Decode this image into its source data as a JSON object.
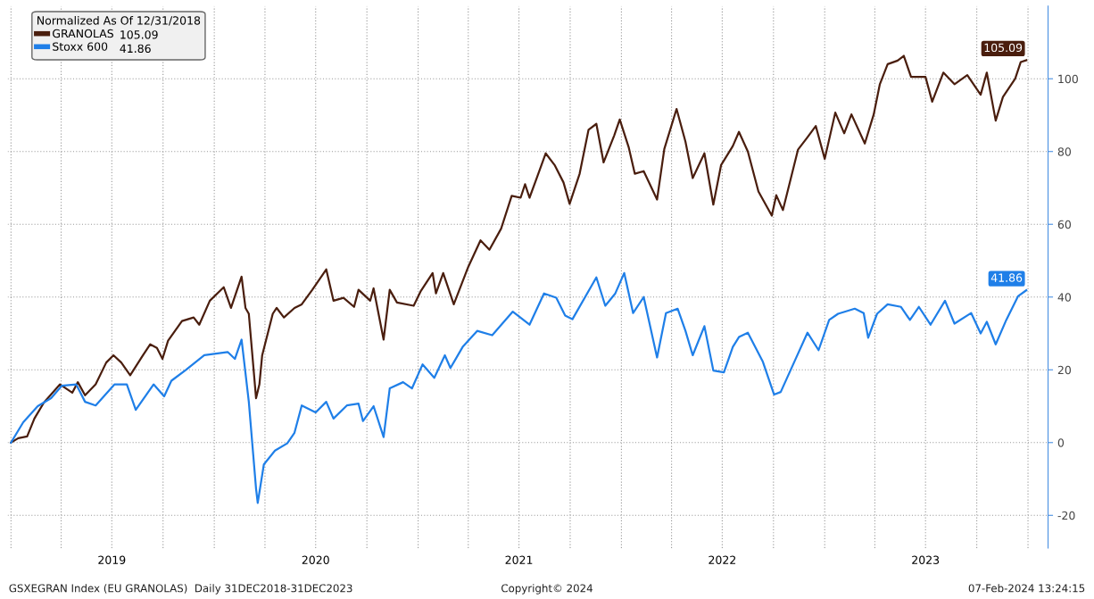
{
  "chart_data": {
    "type": "line",
    "legend_title": "Normalized As Of 12/31/2018",
    "annotations": [
      "GSXEGRAN Index (EU GRANOLAS)  Daily 31DEC2018-31DEC2023",
      "Copyright© 2024",
      "07-Feb-2024 13:24:15"
    ],
    "xlim": [
      "2018-12-26",
      "2024-02-06"
    ],
    "xticks": [
      {
        "value": "2019-01-01",
        "label": null
      },
      {
        "value": "2019-04-01",
        "label": null
      },
      {
        "value": "2019-07-01",
        "label": "2019"
      },
      {
        "value": "2019-10-01",
        "label": null
      },
      {
        "value": "2020-01-01",
        "label": null
      },
      {
        "value": "2020-04-01",
        "label": null
      },
      {
        "value": "2020-07-01",
        "label": "2020"
      },
      {
        "value": "2020-10-01",
        "label": null
      },
      {
        "value": "2021-01-01",
        "label": null
      },
      {
        "value": "2021-04-01",
        "label": null
      },
      {
        "value": "2021-07-01",
        "label": "2021"
      },
      {
        "value": "2021-10-01",
        "label": null
      },
      {
        "value": "2022-01-01",
        "label": null
      },
      {
        "value": "2022-04-01",
        "label": null
      },
      {
        "value": "2022-07-01",
        "label": "2022"
      },
      {
        "value": "2022-10-01",
        "label": null
      },
      {
        "value": "2023-01-01",
        "label": null
      },
      {
        "value": "2023-04-01",
        "label": null
      },
      {
        "value": "2023-07-01",
        "label": "2023"
      },
      {
        "value": "2023-10-01",
        "label": null
      },
      {
        "value": "2024-01-01",
        "label": null
      }
    ],
    "ylim": [
      -29,
      120
    ],
    "yticks": [
      -20,
      0,
      20,
      40,
      60,
      80,
      100
    ],
    "grid": true,
    "legend": "top left",
    "line_style": "solid",
    "series": [
      {
        "name": "GRANOLAS",
        "color": "#4a1e0e",
        "x": [
          "2019-01-01",
          "2019-01-14",
          "2019-01-30",
          "2019-02-12",
          "2019-03-01",
          "2019-03-30",
          "2019-04-21",
          "2019-05-01",
          "2019-05-14",
          "2019-06-02",
          "2019-06-21",
          "2019-07-04",
          "2019-07-18",
          "2019-08-03",
          "2019-08-26",
          "2019-09-08",
          "2019-09-20",
          "2019-09-30",
          "2019-10-10",
          "2019-11-04",
          "2019-11-25",
          "2019-12-05",
          "2019-12-24",
          "2020-01-18",
          "2020-01-31",
          "2020-02-19",
          "2020-02-26",
          "2020-03-03",
          "2020-03-16",
          "2020-03-22",
          "2020-03-27",
          "2020-04-15",
          "2020-04-22",
          "2020-05-05",
          "2020-05-24",
          "2020-06-06",
          "2020-06-25",
          "2020-07-20",
          "2020-08-02",
          "2020-08-20",
          "2020-09-08",
          "2020-09-16",
          "2020-10-07",
          "2020-10-13",
          "2020-10-31",
          "2020-11-11",
          "2020-11-24",
          "2020-12-24",
          "2021-01-06",
          "2021-01-27",
          "2021-02-02",
          "2021-02-15",
          "2021-03-06",
          "2021-04-01",
          "2021-04-23",
          "2021-05-09",
          "2021-05-30",
          "2021-06-18",
          "2021-07-04",
          "2021-07-12",
          "2021-07-20",
          "2021-08-02",
          "2021-08-18",
          "2021-09-03",
          "2021-09-19",
          "2021-09-30",
          "2021-10-18",
          "2021-11-03",
          "2021-11-17",
          "2021-11-30",
          "2021-12-19",
          "2021-12-29",
          "2022-01-14",
          "2022-01-25",
          "2022-02-10",
          "2022-03-06",
          "2022-03-19",
          "2022-04-10",
          "2022-04-26",
          "2022-05-09",
          "2022-05-30",
          "2022-06-15",
          "2022-06-29",
          "2022-07-20",
          "2022-07-31",
          "2022-08-16",
          "2022-09-04",
          "2022-09-28",
          "2022-10-06",
          "2022-10-18",
          "2022-11-14",
          "2022-11-30",
          "2022-12-16",
          "2023-01-01",
          "2023-01-20",
          "2023-02-05",
          "2023-02-18",
          "2023-03-14",
          "2023-03-30",
          "2023-04-10",
          "2023-04-24",
          "2023-05-12",
          "2023-05-23",
          "2023-06-05",
          "2023-07-01",
          "2023-07-13",
          "2023-08-02",
          "2023-08-22",
          "2023-09-14",
          "2023-10-08",
          "2023-10-19",
          "2023-11-04",
          "2023-11-17",
          "2023-12-09",
          "2023-12-19",
          "2023-12-29"
        ],
        "values": [
          0,
          1.2,
          1.7,
          6.6,
          11,
          16,
          13.7,
          16.6,
          13,
          16,
          22,
          24,
          22,
          18.5,
          24,
          27,
          26,
          23,
          28,
          33.4,
          34.4,
          32.4,
          39,
          42.7,
          37,
          45.6,
          37,
          35.4,
          12.2,
          16,
          24,
          35.4,
          37,
          34.4,
          37,
          38,
          42,
          47.6,
          39,
          39.8,
          37.3,
          42,
          39,
          42.4,
          28.3,
          42,
          38.5,
          37.6,
          41.7,
          46.6,
          41,
          46.6,
          38,
          48.3,
          55.6,
          53,
          58.8,
          67.8,
          67.3,
          71,
          67.3,
          72.7,
          79.5,
          76.3,
          71.5,
          65.6,
          73.9,
          86,
          87.6,
          77,
          84.4,
          88.8,
          81.2,
          73.9,
          74.6,
          66.8,
          80.7,
          91.7,
          82.7,
          72.7,
          79.5,
          65.4,
          76.3,
          81.5,
          85.4,
          80,
          69,
          62.4,
          68,
          63.9,
          80.5,
          83.7,
          87,
          78,
          90.7,
          85,
          90.2,
          82.2,
          90.2,
          98.5,
          104,
          105,
          106.3,
          100.5,
          100.5,
          93.7,
          101.7,
          98.5,
          101,
          95.6,
          101.7,
          88.5,
          95,
          100,
          104.6,
          105.09
        ],
        "value_labels": [
          null,
          null,
          null,
          null,
          null,
          null,
          null,
          null,
          null,
          null,
          null,
          null,
          null,
          null,
          null,
          null,
          null,
          null,
          null,
          null,
          null,
          null,
          null,
          null,
          null,
          null,
          null,
          null,
          null,
          null,
          null,
          null,
          null,
          null,
          null,
          null,
          null,
          null,
          null,
          null,
          null,
          null,
          null,
          null,
          null,
          null,
          null,
          null,
          null,
          null,
          null,
          null,
          null,
          null,
          null,
          null,
          null,
          null,
          null,
          null,
          null,
          null,
          null,
          null,
          null,
          null,
          null,
          null,
          null,
          null,
          null,
          null,
          null,
          null,
          null,
          null,
          null,
          null,
          null,
          null,
          null,
          null,
          null,
          null,
          null,
          null,
          null,
          null,
          null,
          null,
          null,
          null,
          null,
          null,
          null,
          null,
          null,
          null,
          null,
          null,
          null,
          null,
          null,
          null,
          null,
          null,
          null,
          null,
          null,
          null,
          null,
          null,
          null,
          null,
          null,
          "105.09"
        ]
      },
      {
        "name": "Stoxx 600",
        "color": "#1f7fe8",
        "x": [
          "2019-01-01",
          "2019-01-23",
          "2019-02-18",
          "2019-03-14",
          "2019-04-02",
          "2019-04-28",
          "2019-05-14",
          "2019-06-02",
          "2019-07-06",
          "2019-07-28",
          "2019-08-13",
          "2019-09-14",
          "2019-10-03",
          "2019-10-16",
          "2019-11-11",
          "2019-12-14",
          "2020-01-25",
          "2020-02-07",
          "2020-02-19",
          "2020-03-03",
          "2020-03-16",
          "2020-03-19",
          "2020-03-30",
          "2020-04-19",
          "2020-05-11",
          "2020-05-24",
          "2020-06-06",
          "2020-07-01",
          "2020-07-20",
          "2020-08-02",
          "2020-08-26",
          "2020-09-16",
          "2020-09-24",
          "2020-10-13",
          "2020-10-31",
          "2020-11-11",
          "2020-12-05",
          "2020-12-21",
          "2021-01-09",
          "2021-01-30",
          "2021-02-18",
          "2021-02-28",
          "2021-03-22",
          "2021-04-17",
          "2021-05-14",
          "2021-06-20",
          "2021-07-20",
          "2021-08-15",
          "2021-09-06",
          "2021-09-22",
          "2021-10-05",
          "2021-11-17",
          "2021-12-03",
          "2021-12-21",
          "2022-01-06",
          "2022-01-22",
          "2022-02-10",
          "2022-03-06",
          "2022-03-22",
          "2022-04-12",
          "2022-04-26",
          "2022-05-09",
          "2022-05-30",
          "2022-06-15",
          "2022-07-04",
          "2022-07-20",
          "2022-07-31",
          "2022-08-16",
          "2022-09-12",
          "2022-10-02",
          "2022-10-14",
          "2022-11-11",
          "2022-12-01",
          "2022-12-21",
          "2023-01-09",
          "2023-01-25",
          "2023-02-24",
          "2023-03-12",
          "2023-03-20",
          "2023-04-05",
          "2023-04-24",
          "2023-05-18",
          "2023-06-03",
          "2023-06-19",
          "2023-07-10",
          "2023-08-05",
          "2023-08-22",
          "2023-09-21",
          "2023-10-08",
          "2023-10-19",
          "2023-11-04",
          "2023-11-23",
          "2023-12-14",
          "2023-12-29"
        ],
        "values": [
          0,
          5.6,
          10,
          12.2,
          15.6,
          16,
          11.2,
          10.2,
          16,
          16,
          9,
          16,
          12.7,
          17,
          20,
          24,
          24.9,
          23,
          28.3,
          11.2,
          -12.7,
          -16.6,
          -6,
          -2.2,
          -0.2,
          2.7,
          10.2,
          8.3,
          11.2,
          6.6,
          10.2,
          10.7,
          5.9,
          10,
          1.5,
          14.9,
          16.6,
          14.9,
          21.5,
          17.8,
          24,
          20.5,
          26.3,
          30.7,
          29.5,
          36,
          32.4,
          41,
          39.8,
          34.9,
          33.9,
          45.4,
          37.6,
          41,
          46.6,
          35.6,
          40,
          23.4,
          35.6,
          36.8,
          30.7,
          24,
          32,
          19.8,
          19.3,
          26.3,
          29,
          30.2,
          22.2,
          13.2,
          13.9,
          23.4,
          30.2,
          25.4,
          33.7,
          35.4,
          36.8,
          35.6,
          28.8,
          35.4,
          38,
          37.3,
          33.7,
          37.3,
          32.4,
          39,
          32.7,
          35.6,
          30,
          33.2,
          27,
          33.7,
          40.2,
          41.86
        ],
        "value_labels": [
          null,
          null,
          null,
          null,
          null,
          null,
          null,
          null,
          null,
          null,
          null,
          null,
          null,
          null,
          null,
          null,
          null,
          null,
          null,
          null,
          null,
          null,
          null,
          null,
          null,
          null,
          null,
          null,
          null,
          null,
          null,
          null,
          null,
          null,
          null,
          null,
          null,
          null,
          null,
          null,
          null,
          null,
          null,
          null,
          null,
          null,
          null,
          null,
          null,
          null,
          null,
          null,
          null,
          null,
          null,
          null,
          null,
          null,
          null,
          null,
          null,
          null,
          null,
          null,
          null,
          null,
          null,
          null,
          null,
          null,
          null,
          null,
          null,
          null,
          null,
          null,
          null,
          null,
          null,
          null,
          null,
          null,
          null,
          null,
          null,
          null,
          null,
          null,
          null,
          null,
          null,
          null,
          null,
          "41.86"
        ]
      }
    ]
  }
}
